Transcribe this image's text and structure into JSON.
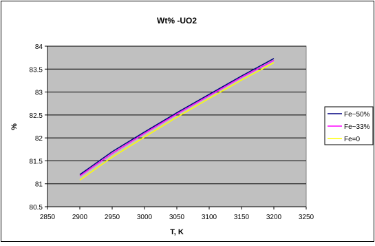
{
  "chart_data": {
    "type": "line",
    "title": "Wt% -UO2",
    "xlabel": "T, K",
    "ylabel": "%",
    "xlim": [
      2850,
      3250
    ],
    "ylim": [
      80.5,
      84
    ],
    "x_ticks": [
      "2850",
      "2900",
      "2950",
      "3000",
      "3050",
      "3100",
      "3150",
      "3200",
      "3250"
    ],
    "y_ticks": [
      "80.5",
      "81",
      "81.5",
      "82",
      "82.5",
      "83",
      "83.5",
      "84"
    ],
    "grid": "horizontal",
    "legend_position": "right",
    "plot_background": "#c0c0c0",
    "series": [
      {
        "name": "Fe~50%",
        "color": "#000080",
        "x": [
          2900,
          2950,
          3000,
          3050,
          3100,
          3150,
          3200
        ],
        "y": [
          81.2,
          81.7,
          82.13,
          82.55,
          82.95,
          83.35,
          83.73
        ]
      },
      {
        "name": "Fe~33%",
        "color": "#ff00ff",
        "x": [
          2900,
          2950,
          3000,
          3050,
          3100,
          3150,
          3200
        ],
        "y": [
          81.17,
          81.66,
          82.1,
          82.52,
          82.92,
          83.32,
          83.69
        ]
      },
      {
        "name": "Fe=0",
        "color": "#ffff00",
        "x": [
          2900,
          2950,
          3000,
          3050,
          3100,
          3150,
          3200
        ],
        "y": [
          81.08,
          81.58,
          82.02,
          82.45,
          82.86,
          83.26,
          83.64
        ]
      }
    ]
  }
}
